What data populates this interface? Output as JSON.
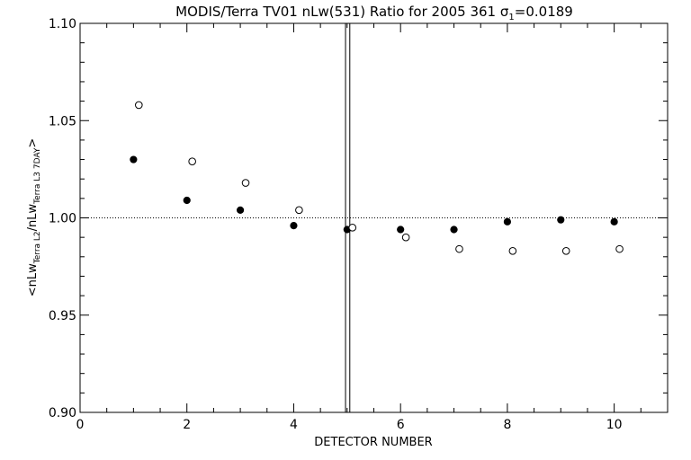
{
  "chart_data": {
    "type": "scatter",
    "title_main": "MODIS/Terra TV01 nLw(531) Ratio for 2005 361 ",
    "title_sigma": "σ",
    "title_sigma_sub": "1",
    "title_value": "=0.0189",
    "xlabel": "DETECTOR NUMBER",
    "ylabel_parts": {
      "open": "<nLw",
      "sub1": "Terra L2",
      "slash": "/nLw",
      "sub2": "Terra L3 7DAY",
      "close": ">"
    },
    "xlim": [
      0,
      11
    ],
    "ylim": [
      0.9,
      1.1
    ],
    "x_ticks": [
      0,
      2,
      4,
      6,
      8,
      10
    ],
    "x_tick_labels": [
      "0",
      "2",
      "4",
      "6",
      "8",
      "10"
    ],
    "y_ticks": [
      0.9,
      0.95,
      1.0,
      1.05,
      1.1
    ],
    "y_tick_labels": [
      "0.90",
      "0.95",
      "1.00",
      "1.05",
      "1.10"
    ],
    "reference_line_y": 1.0,
    "vertical_lines_x": [
      4.97,
      5.05
    ],
    "series": [
      {
        "marker": "filled-circle",
        "x": [
          1,
          2,
          3,
          4,
          5,
          6,
          7,
          8,
          9,
          10
        ],
        "y": [
          1.03,
          1.009,
          1.004,
          0.996,
          0.994,
          0.994,
          0.994,
          0.998,
          0.999,
          0.998
        ]
      },
      {
        "marker": "open-circle",
        "x": [
          1.1,
          2.1,
          3.1,
          4.1,
          5.1,
          6.1,
          7.1,
          8.1,
          9.1,
          10.1
        ],
        "y": [
          1.058,
          1.029,
          1.018,
          1.004,
          0.995,
          0.99,
          0.984,
          0.983,
          0.983,
          0.984
        ]
      }
    ],
    "grid": false
  }
}
